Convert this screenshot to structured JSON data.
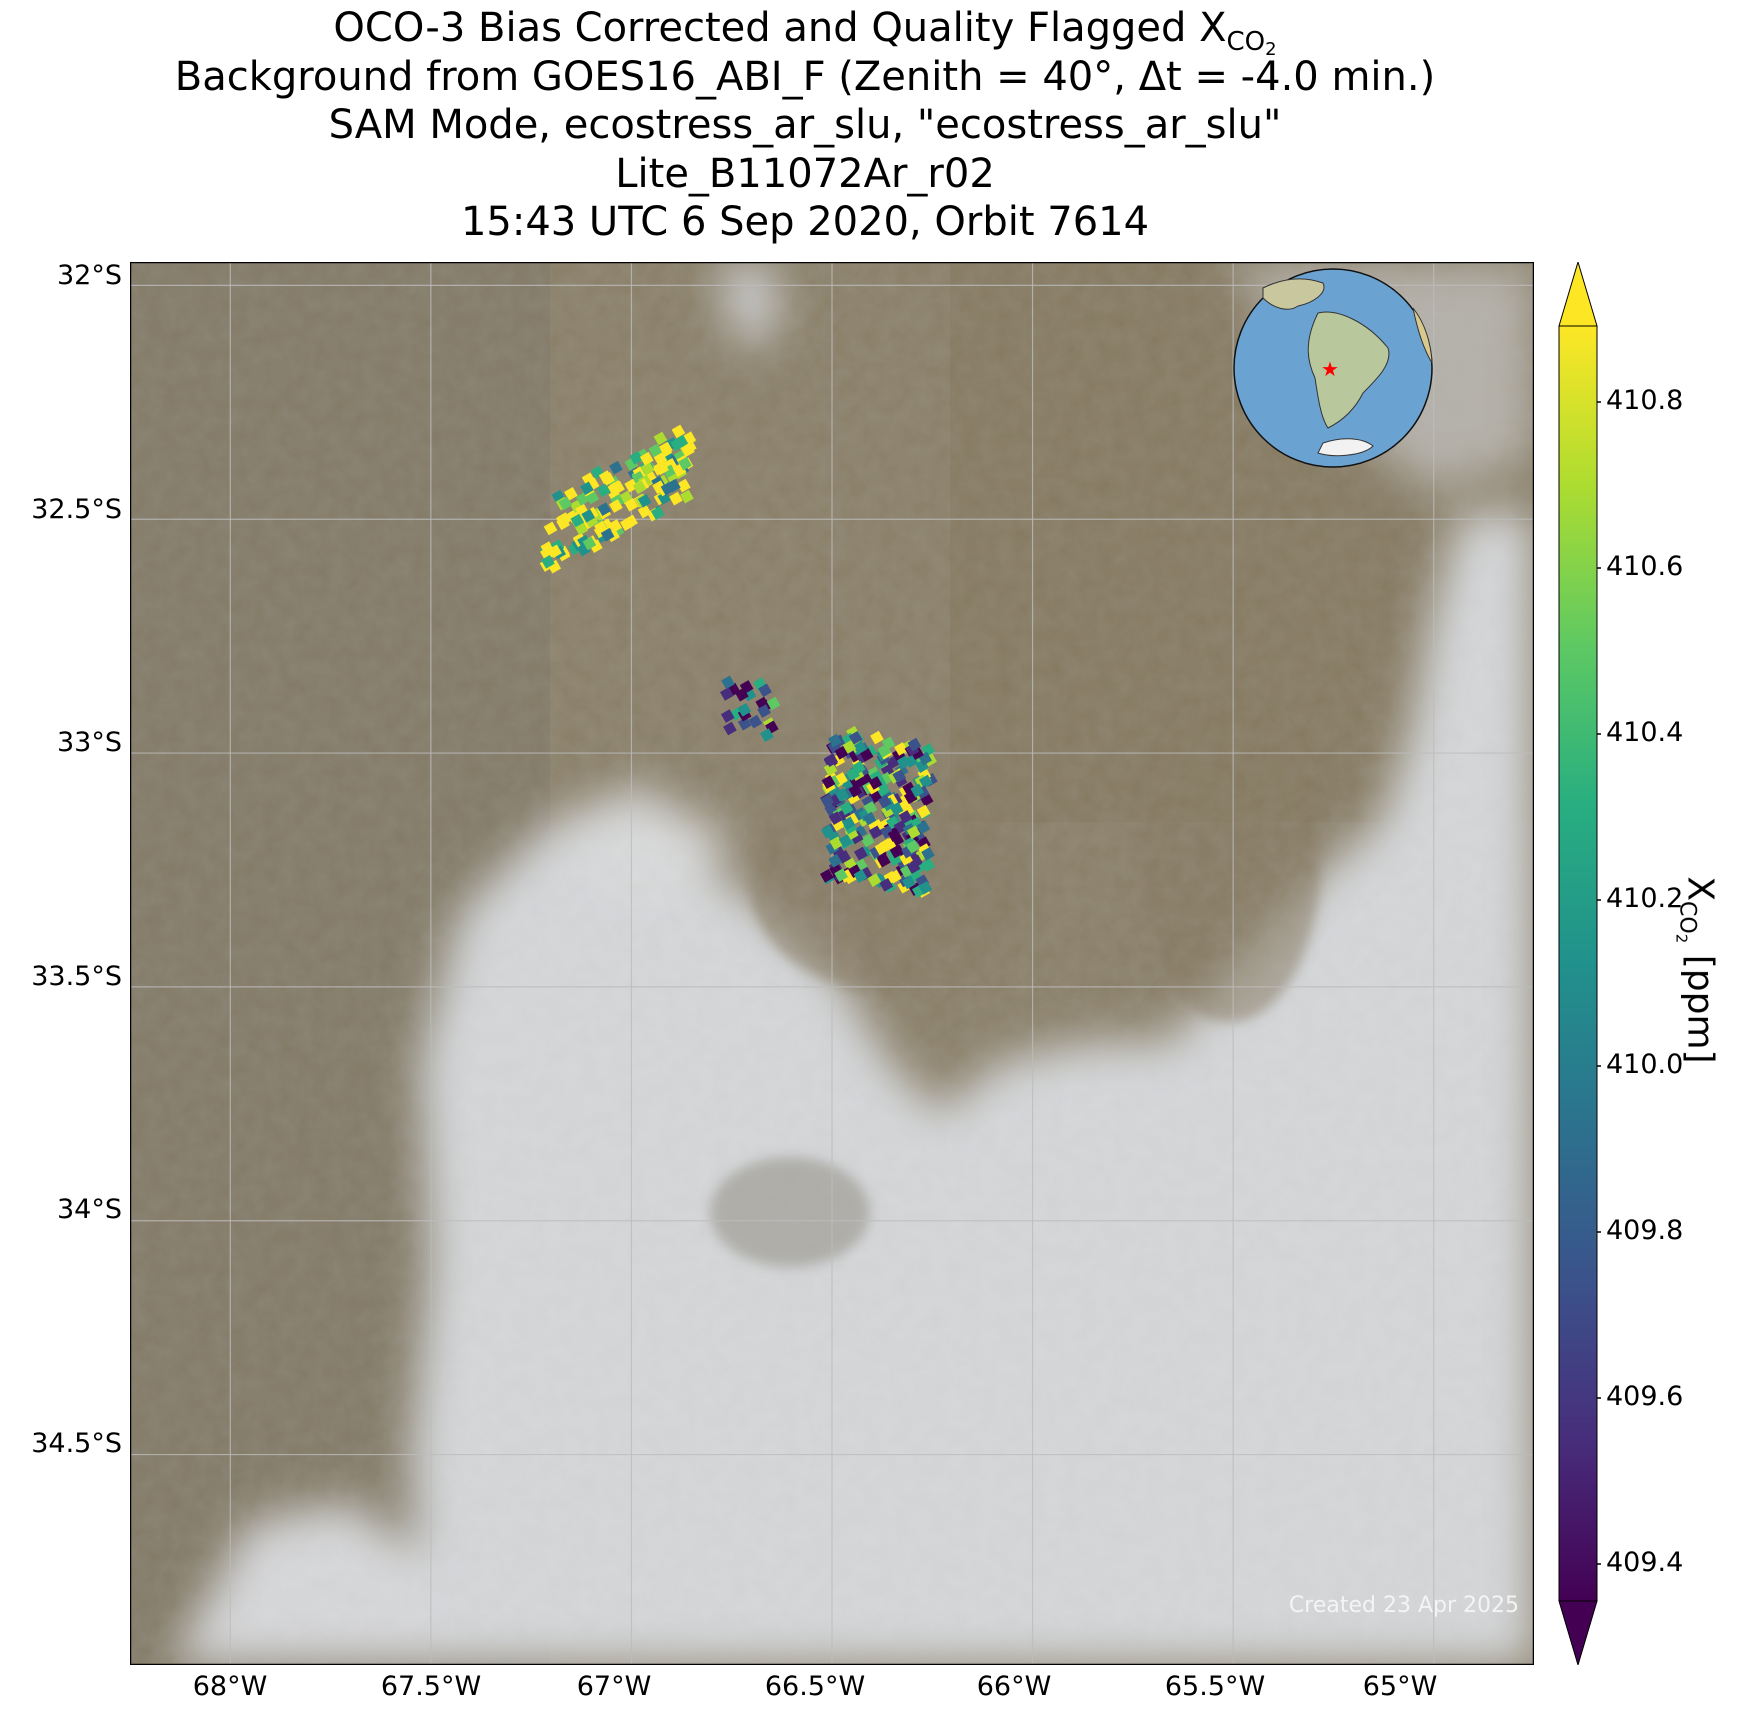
{
  "title": {
    "line1_prefix": "OCO-3 Bias Corrected and Quality Flagged X",
    "line1_sub": "CO",
    "line1_sub2": "2",
    "line2": "Background from GOES16_ABI_F (Zenith = 40°, Δt = -4.0 min.)",
    "line3": "SAM Mode, ecostress_ar_slu, \"ecostress_ar_slu\"",
    "line4": "Lite_B11072Ar_r02",
    "line5": "15:43 UTC 6 Sep 2020, Orbit 7614"
  },
  "map": {
    "lon_range": [
      -68.25,
      -64.75
    ],
    "lat_range": [
      -34.95,
      -31.95
    ],
    "lat_ticks": [
      "32°S",
      "32.5°S",
      "33°S",
      "33.5°S",
      "34°S",
      "34.5°S"
    ],
    "lon_ticks": [
      "68°W",
      "67.5°W",
      "67°W",
      "66.5°W",
      "66°W",
      "65.5°W",
      "65°W"
    ],
    "credit": "Created 23 Apr 2025",
    "colors": {
      "land": "#8a7f68",
      "cloud": "#d9dadb",
      "grid": "#bcbcbc"
    }
  },
  "inset_globe": {
    "icon": "globe-inset-icon",
    "marker_color": "#ff0000",
    "ocean_color": "#6aa3d2"
  },
  "colorbar": {
    "label_prefix": "X",
    "label_sub": "CO",
    "label_sub2": "2",
    "label_unit": " [ppm]",
    "range": [
      409.3,
      410.9
    ],
    "extend": "both",
    "colormap": "viridis",
    "tick_labels": [
      "410.8",
      "410.6",
      "410.4",
      "410.2",
      "410.0",
      "409.8",
      "409.6",
      "409.4"
    ]
  },
  "soundings": {
    "colormap": "viridis",
    "value_range": [
      409.3,
      410.9
    ],
    "clusters": [
      {
        "center_lon": -67.05,
        "center_lat": -32.45,
        "mean_value": 410.7
      },
      {
        "center_lon": -66.72,
        "center_lat": -32.9,
        "mean_value": 409.9
      },
      {
        "center_lon": -66.4,
        "center_lat": -33.12,
        "mean_value": 410.1
      }
    ]
  }
}
